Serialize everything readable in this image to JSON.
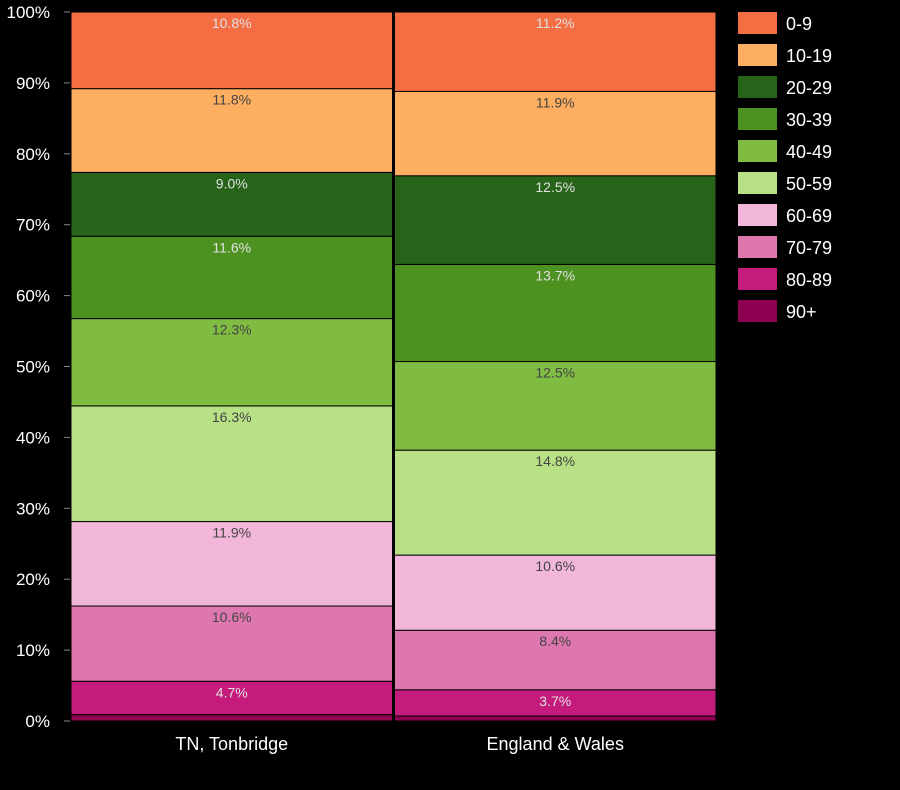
{
  "chart_data": {
    "type": "bar",
    "stacked": true,
    "normalized": true,
    "categories": [
      "TN, Tonbridge",
      "England & Wales"
    ],
    "yticks": [
      "0%",
      "10%",
      "20%",
      "30%",
      "40%",
      "50%",
      "60%",
      "70%",
      "80%",
      "90%",
      "100%"
    ],
    "ylim": [
      0,
      100
    ],
    "legend_position": "right",
    "series": [
      {
        "name": "90+",
        "color": "#8e0152",
        "values": [
          0.9,
          0.7
        ],
        "labels": [
          "",
          ""
        ]
      },
      {
        "name": "80-89",
        "color": "#c51b7d",
        "values": [
          4.7,
          3.7
        ],
        "labels": [
          "4.7%",
          "3.7%"
        ]
      },
      {
        "name": "70-79",
        "color": "#de77ae",
        "values": [
          10.6,
          8.4
        ],
        "labels": [
          "10.6%",
          "8.4%"
        ]
      },
      {
        "name": "60-69",
        "color": "#f1b6da",
        "values": [
          11.9,
          10.6
        ],
        "labels": [
          "11.9%",
          "10.6%"
        ]
      },
      {
        "name": "50-59",
        "color": "#b8e186",
        "values": [
          16.3,
          14.8
        ],
        "labels": [
          "16.3%",
          "14.8%"
        ]
      },
      {
        "name": "40-49",
        "color": "#7fbc41",
        "values": [
          12.3,
          12.5
        ],
        "labels": [
          "12.3%",
          "12.5%"
        ]
      },
      {
        "name": "30-39",
        "color": "#4d9221",
        "values": [
          11.6,
          13.7
        ],
        "labels": [
          "11.6%",
          "13.7%"
        ]
      },
      {
        "name": "20-29",
        "color": "#276419",
        "values": [
          9.0,
          12.5
        ],
        "labels": [
          "9.0%",
          "12.5%"
        ]
      },
      {
        "name": "10-19",
        "color": "#fdae61",
        "values": [
          11.8,
          11.9
        ],
        "labels": [
          "11.8%",
          "11.9%"
        ]
      },
      {
        "name": "0-9",
        "color": "#f46d43",
        "values": [
          10.8,
          11.2
        ],
        "labels": [
          "10.8%",
          "11.2%"
        ]
      }
    ],
    "legend_order": [
      "0-9",
      "10-19",
      "20-29",
      "30-39",
      "40-49",
      "50-59",
      "60-69",
      "70-79",
      "80-89",
      "90+"
    ]
  }
}
